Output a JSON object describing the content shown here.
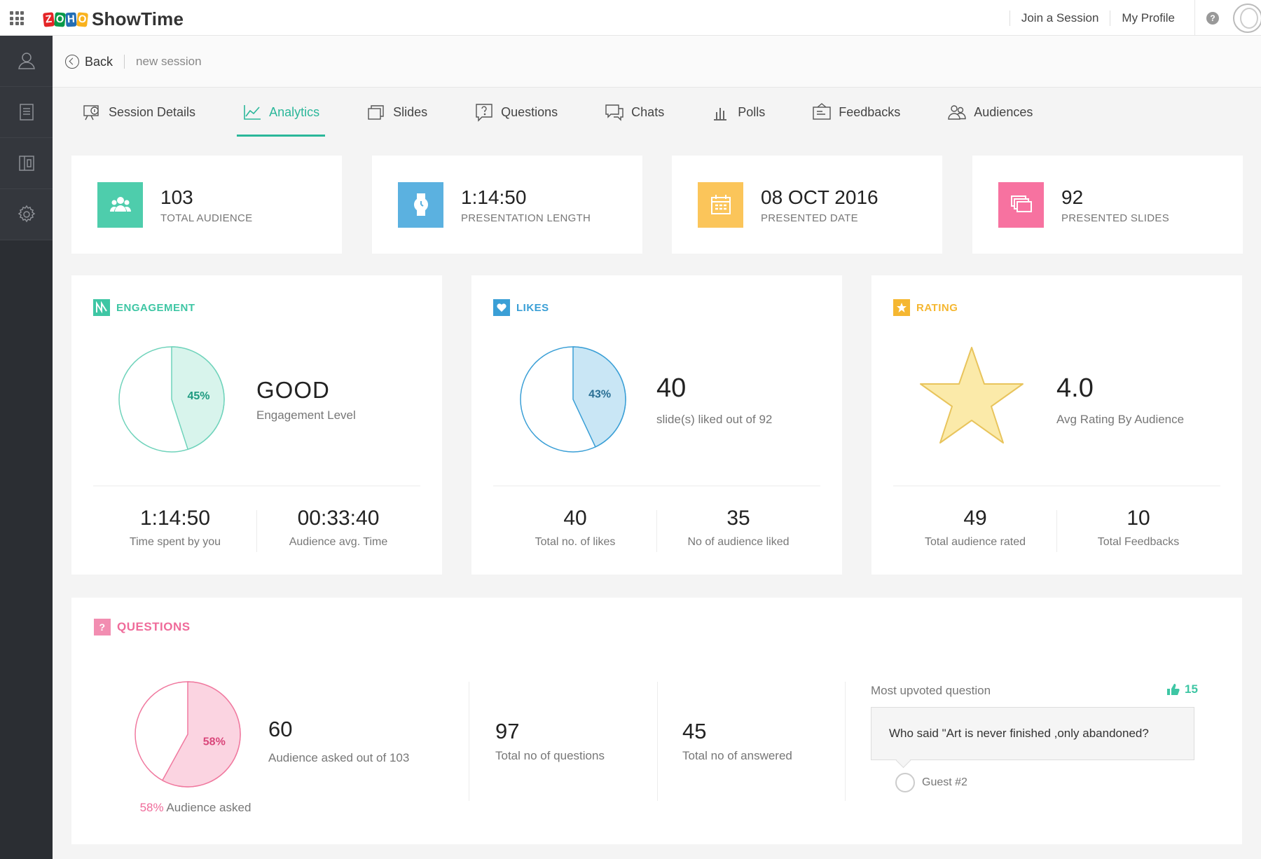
{
  "app": {
    "logo_text": "ShowTime",
    "logo_letters": [
      "Z",
      "O",
      "H",
      "O"
    ]
  },
  "topbar": {
    "join_session": "Join a Session",
    "my_profile": "My Profile",
    "help": "?"
  },
  "subheader": {
    "back": "Back",
    "session_name": "new session"
  },
  "tabs": [
    {
      "label": "Session Details",
      "icon": "session-details-icon"
    },
    {
      "label": "Analytics",
      "icon": "analytics-icon",
      "active": true
    },
    {
      "label": "Slides",
      "icon": "slides-icon"
    },
    {
      "label": "Questions",
      "icon": "questions-icon"
    },
    {
      "label": "Chats",
      "icon": "chats-icon"
    },
    {
      "label": "Polls",
      "icon": "polls-icon"
    },
    {
      "label": "Feedbacks",
      "icon": "feedbacks-icon"
    },
    {
      "label": "Audiences",
      "icon": "audiences-icon"
    }
  ],
  "stats": [
    {
      "value": "103",
      "label": "TOTAL AUDIENCE",
      "color": "#4ecdac",
      "icon": "audience-icon"
    },
    {
      "value": "1:14:50",
      "label": "PRESENTATION LENGTH",
      "color": "#5bb1e0",
      "icon": "watch-icon"
    },
    {
      "value": "08 OCT 2016",
      "label": "PRESENTED DATE",
      "color": "#fbc55a",
      "icon": "calendar-icon"
    },
    {
      "value": "92",
      "label": "PRESENTED SLIDES",
      "color": "#f772a0",
      "icon": "slides-stack-icon"
    }
  ],
  "engagement": {
    "title": "ENGAGEMENT",
    "color": "#3ec6a4",
    "percent": 45,
    "percent_label": "45%",
    "level": "GOOD",
    "level_label": "Engagement Level",
    "foot": [
      {
        "value": "1:14:50",
        "label": "Time spent by you"
      },
      {
        "value": "00:33:40",
        "label": "Audience avg. Time"
      }
    ]
  },
  "likes": {
    "title": "LIKES",
    "color": "#3a9fd6",
    "percent": 43,
    "percent_label": "43%",
    "value": "40",
    "value_label": "slide(s) liked out of 92",
    "foot": [
      {
        "value": "40",
        "label": "Total no. of likes"
      },
      {
        "value": "35",
        "label": "No of audience liked"
      }
    ]
  },
  "rating": {
    "title": "RATING",
    "color": "#f5b731",
    "value": "4.0",
    "value_label": "Avg Rating By Audience",
    "foot": [
      {
        "value": "49",
        "label": "Total audience rated"
      },
      {
        "value": "10",
        "label": "Total Feedbacks"
      }
    ]
  },
  "questions": {
    "title": "QUESTIONS",
    "color": "#ef6b9a",
    "icon_glyph": "?",
    "percent": 58,
    "percent_label": "58%",
    "asked_value": "60",
    "asked_label": "Audience asked out of 103",
    "asked_pct": "58%",
    "asked_pct_label": "Audience asked",
    "total_questions": "97",
    "total_questions_label": "Total no of questions",
    "total_answered": "45",
    "total_answered_label": "Total no of answered",
    "most_upvoted_label": "Most upvoted question",
    "upvotes": "15",
    "upvote_color": "#3ec6a4",
    "top_question": "Who said \"Art is never finished ,only abandoned?",
    "asker": "Guest #2"
  }
}
